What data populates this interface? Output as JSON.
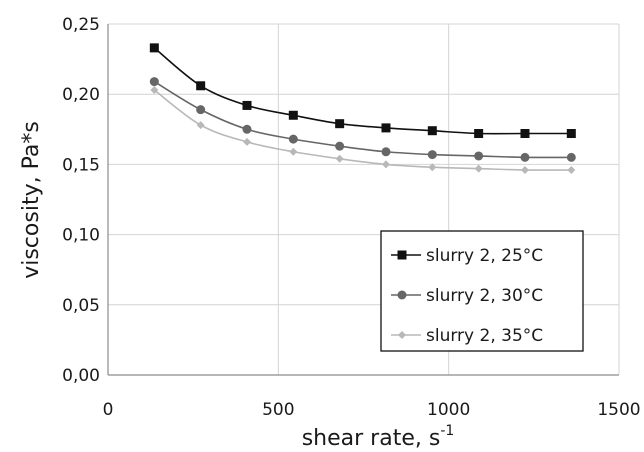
{
  "chart_data": {
    "type": "line",
    "title": "",
    "xlabel": "shear rate, s",
    "xlabel_superscript": "-1",
    "ylabel": "viscosity,  Pa*s",
    "xlim": [
      0,
      1500
    ],
    "ylim": [
      0.0,
      0.25
    ],
    "xticks": [
      0,
      500,
      1000,
      1500
    ],
    "xtick_labels": [
      "0",
      "500",
      "1000",
      "1500"
    ],
    "yticks": [
      0.0,
      0.05,
      0.1,
      0.15,
      0.2,
      0.25
    ],
    "ytick_labels": [
      "0,00",
      "0,05",
      "0,10",
      "0,15",
      "0,20",
      "0,25"
    ],
    "grid": true,
    "legend_position": "bottom-right",
    "series": [
      {
        "name": "slurry 2, 25°C",
        "color": "#111111",
        "marker": "square",
        "x": [
          136,
          272,
          408,
          544,
          680,
          816,
          952,
          1088,
          1224,
          1360
        ],
        "y": [
          0.233,
          0.206,
          0.192,
          0.185,
          0.179,
          0.176,
          0.174,
          0.172,
          0.172,
          0.172
        ]
      },
      {
        "name": "slurry 2, 30°C",
        "color": "#666666",
        "marker": "circle",
        "x": [
          136,
          272,
          408,
          544,
          680,
          816,
          952,
          1088,
          1224,
          1360
        ],
        "y": [
          0.209,
          0.189,
          0.175,
          0.168,
          0.163,
          0.159,
          0.157,
          0.156,
          0.155,
          0.155
        ]
      },
      {
        "name": "slurry 2, 35°C",
        "color": "#b8b8b8",
        "marker": "diamond",
        "x": [
          136,
          272,
          408,
          544,
          680,
          816,
          952,
          1088,
          1224,
          1360
        ],
        "y": [
          0.203,
          0.178,
          0.166,
          0.159,
          0.154,
          0.15,
          0.148,
          0.147,
          0.146,
          0.146
        ]
      }
    ]
  }
}
